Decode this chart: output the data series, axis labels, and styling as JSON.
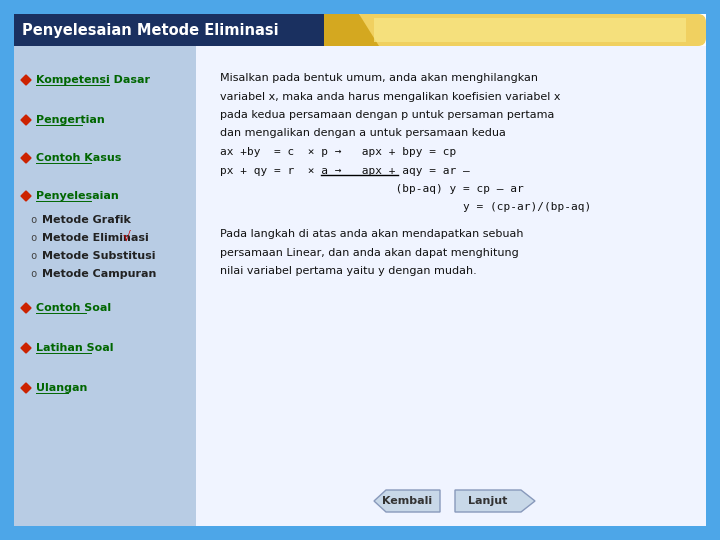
{
  "title": "Penyelesaian Metode Eliminasi",
  "bg_outer": "#4da6e8",
  "bg_header_dark": "#1a3060",
  "bg_header_gold_left": "#e8c840",
  "bg_header_gold_right": "#f5e090",
  "bg_left_panel": "#b8cce4",
  "bg_right_panel": "#f0f4ff",
  "left_menu_items": [
    {
      "text": "Kompetensi Dasar",
      "level": 0,
      "underline": true
    },
    {
      "text": "Pengertian",
      "level": 0,
      "underline": true
    },
    {
      "text": "Contoh Kasus",
      "level": 0,
      "underline": true
    },
    {
      "text": "Penyelesaian",
      "level": 0,
      "underline": true
    },
    {
      "text": "Metode Grafik",
      "level": 1,
      "underline": false,
      "checked": false
    },
    {
      "text": "Metode Eliminasi",
      "level": 1,
      "underline": false,
      "checked": true
    },
    {
      "text": "Metode Substitusi",
      "level": 1,
      "underline": false,
      "checked": false
    },
    {
      "text": "Metode Campuran",
      "level": 1,
      "underline": false,
      "checked": false
    },
    {
      "text": "Contoh Soal",
      "level": 0,
      "underline": true
    },
    {
      "text": "Latihan Soal",
      "level": 0,
      "underline": true
    },
    {
      "text": "Ulangan",
      "level": 0,
      "underline": true
    }
  ],
  "right_text1_lines": [
    "Misalkan pada bentuk umum, anda akan menghilangkan",
    "variabel x, maka anda harus mengalikan koefisien variabel x",
    "pada kedua persamaan dengan p untuk persaman pertama",
    "dan mengalikan dengan a untuk persamaan kedua",
    "ax +by  = c  × p →   apx + bpy = cp",
    "px + qy = r  × a →   apx + aqy = ar –",
    "                          (bp-aq) y = cp – ar",
    "                                    y = (cp-ar)/(bp-aq)"
  ],
  "right_text2_lines": [
    "Pada langkah di atas anda akan mendapatkan sebuah",
    "persamaan Linear, dan anda akan dapat menghitung",
    "nilai variabel pertama yaitu y dengan mudah."
  ],
  "btn_kembali": "Kembali",
  "btn_lanjut": "Lanjut",
  "menu_link_color": "#006600",
  "submenu_color": "#222222",
  "text_color": "#111111",
  "header_text_color": "#ffffff",
  "bullet_color": "#cc2200",
  "checkmark_color": "#cc0000"
}
